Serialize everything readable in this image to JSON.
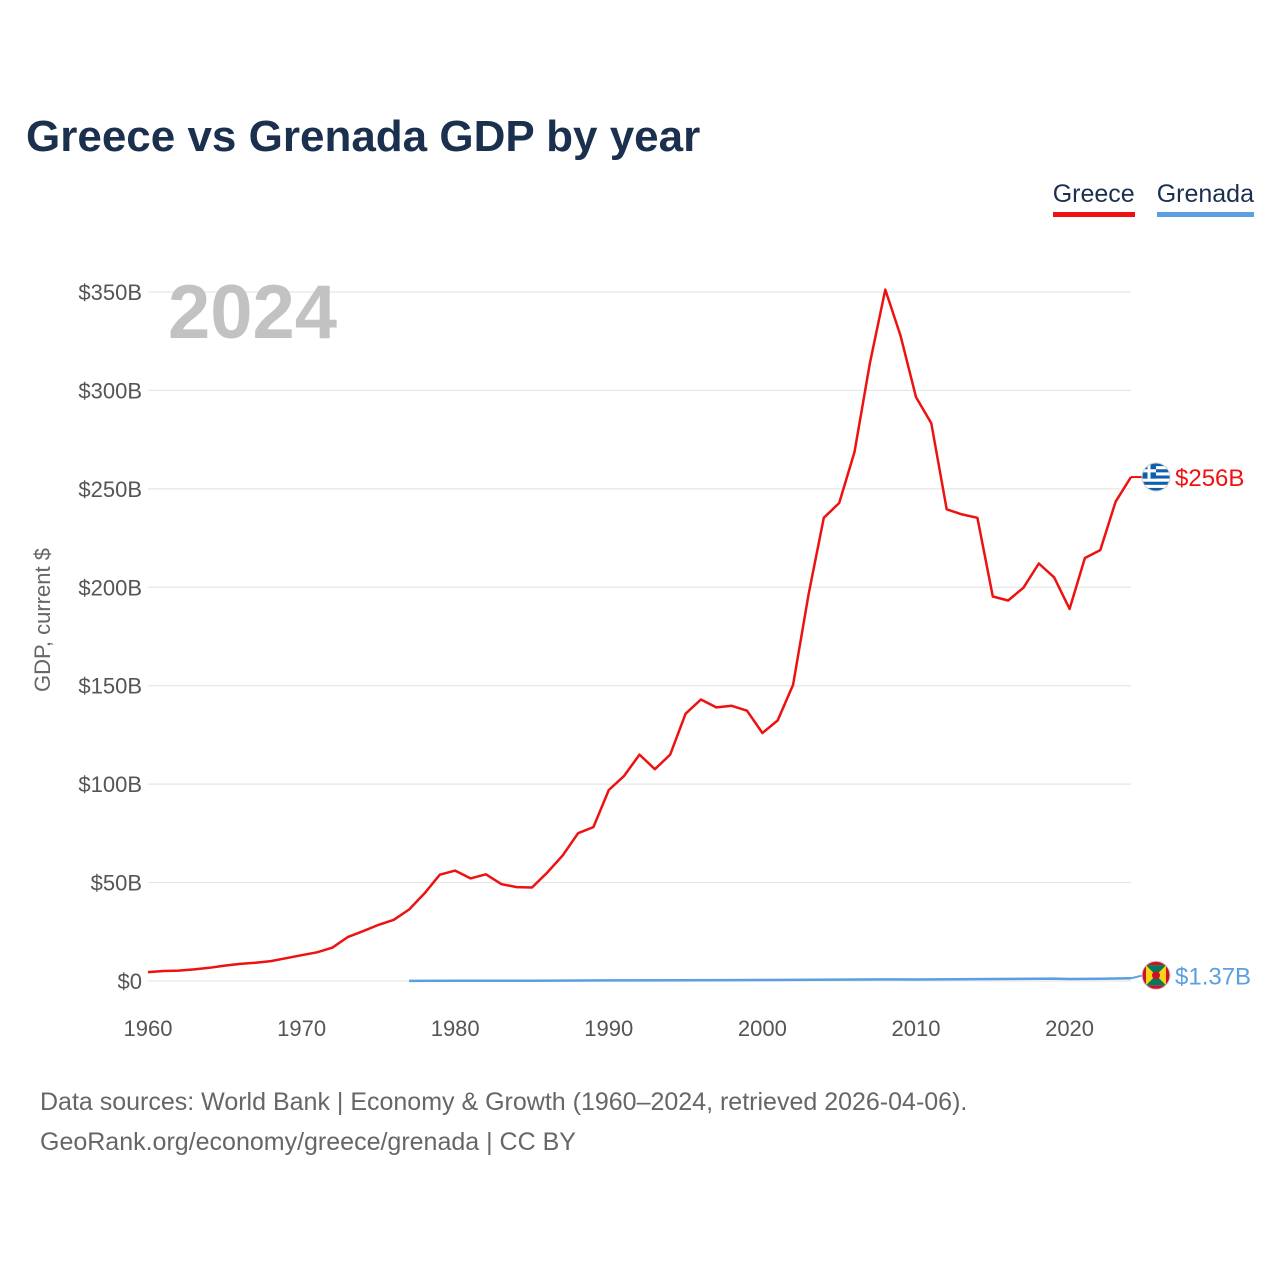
{
  "chart_data": {
    "type": "line",
    "title": "Greece vs Grenada GDP by year",
    "xlabel": "",
    "ylabel": "GDP, current $",
    "xlim": [
      1960,
      2024
    ],
    "ylim": [
      0,
      350
    ],
    "x_ticks": [
      1960,
      1970,
      1980,
      1990,
      2000,
      2010,
      2020
    ],
    "x_tick_labels": [
      "1960",
      "1970",
      "1980",
      "1990",
      "2000",
      "2010",
      "2020"
    ],
    "y_ticks": [
      0,
      50,
      100,
      150,
      200,
      250,
      300,
      350
    ],
    "y_tick_labels": [
      "$0",
      "$50B",
      "$100B",
      "$150B",
      "$200B",
      "$250B",
      "$300B",
      "$350B"
    ],
    "current_year": "2024",
    "series": [
      {
        "name": "Greece",
        "color": "#ee1111",
        "end_label": "$256B",
        "flag": "greece-flag",
        "x": [
          1960,
          1961,
          1962,
          1963,
          1964,
          1965,
          1966,
          1967,
          1968,
          1969,
          1970,
          1971,
          1972,
          1973,
          1974,
          1975,
          1976,
          1977,
          1978,
          1979,
          1980,
          1981,
          1982,
          1983,
          1984,
          1985,
          1986,
          1987,
          1988,
          1989,
          1990,
          1991,
          1992,
          1993,
          1994,
          1995,
          1996,
          1997,
          1998,
          1999,
          2000,
          2001,
          2002,
          2003,
          2004,
          2005,
          2006,
          2007,
          2008,
          2009,
          2010,
          2011,
          2012,
          2013,
          2014,
          2015,
          2016,
          2017,
          2018,
          2019,
          2020,
          2021,
          2022,
          2023,
          2024
        ],
        "values": [
          4.5,
          5.1,
          5.3,
          5.9,
          6.7,
          7.8,
          8.7,
          9.3,
          10.1,
          11.6,
          13.1,
          14.6,
          16.9,
          22.3,
          25.3,
          28.5,
          31.1,
          36.3,
          44.5,
          54.0,
          56.1,
          52.1,
          54.2,
          49.2,
          47.7,
          47.5,
          55.1,
          63.8,
          75.1,
          78.2,
          97.0,
          104.2,
          115.0,
          107.6,
          115.0,
          135.8,
          143.0,
          139.0,
          139.8,
          137.3,
          126.0,
          132.4,
          150.5,
          196.2,
          235.3,
          242.8,
          268.7,
          313.9,
          351.2,
          327.7,
          296.6,
          283.3,
          239.6,
          237.0,
          235.3,
          195.3,
          193.3,
          199.8,
          212.1,
          205.0,
          189.0,
          214.9,
          218.9,
          243.5,
          256.0
        ]
      },
      {
        "name": "Grenada",
        "color": "#5b9fe0",
        "end_label": "$1.37B",
        "flag": "grenada-flag",
        "x": [
          1977,
          1980,
          1985,
          1990,
          1995,
          2000,
          2005,
          2008,
          2010,
          2015,
          2019,
          2020,
          2022,
          2024
        ],
        "values": [
          0.06,
          0.09,
          0.14,
          0.28,
          0.36,
          0.52,
          0.7,
          0.83,
          0.77,
          1.01,
          1.22,
          1.04,
          1.19,
          1.37
        ]
      }
    ]
  },
  "source": {
    "line1": "Data sources: World Bank | Economy & Growth (1960–2024, retrieved 2026-04-06).",
    "line2": "GeoRank.org/economy/greece/grenada | CC BY"
  }
}
